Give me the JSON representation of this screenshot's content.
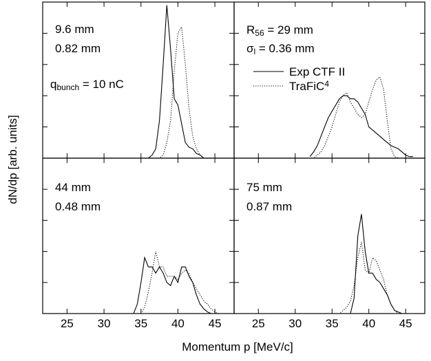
{
  "chart_data": {
    "type": "line",
    "x_label": "Momentum p [MeV/c]",
    "y_label": "dN/dp  [arb. units]",
    "x": [
      32,
      32.5,
      33,
      33.5,
      34,
      34.5,
      35,
      35.5,
      36,
      36.5,
      37,
      37.5,
      38,
      38.5,
      39,
      39.5,
      40,
      40.5,
      41,
      41.5,
      42,
      42.5,
      43,
      43.5,
      44,
      44.5,
      45,
      45.5,
      46
    ],
    "xlim": [
      21.7,
      47.6
    ],
    "xticks": [
      25,
      30,
      35,
      40,
      45
    ],
    "ylim": [
      0,
      5
    ],
    "yticks": [
      1,
      2,
      3,
      4
    ],
    "series": [
      {
        "name": [
          {
            "text": "Exp CTF II"
          }
        ],
        "color": "#000000",
        "style": "solid"
      },
      {
        "name": [
          {
            "text": "TraFiC"
          },
          {
            "sup": "4"
          }
        ],
        "color": "#000000",
        "style": "dotted"
      }
    ],
    "legend_panel": 1,
    "panels": [
      {
        "annotations": [
          [
            {
              "text": "9.6 mm"
            }
          ],
          [
            {
              "text": "0.82 mm"
            }
          ],
          [
            {
              "text": "q"
            },
            {
              "sub": "bunch"
            },
            {
              "text": " = 10 nC"
            }
          ]
        ],
        "values": [
          [
            0,
            0,
            0,
            0,
            0,
            0,
            0,
            0,
            0,
            0.1,
            0.3,
            1.2,
            3.0,
            4.9,
            3.5,
            1.9,
            1.7,
            1.1,
            0.5,
            0.35,
            0.3,
            0.15,
            0.1,
            0,
            0,
            0,
            0,
            0,
            0
          ],
          [
            0,
            0,
            0,
            0,
            0,
            0,
            0,
            0,
            0,
            0,
            0,
            0,
            0.1,
            0.5,
            1.2,
            2.8,
            4.0,
            4.2,
            3.0,
            1.6,
            0.7,
            0.3,
            0.1,
            0,
            0,
            0,
            0,
            0,
            0
          ]
        ]
      },
      {
        "annotations": [
          [
            {
              "text": "R"
            },
            {
              "sub": "56"
            },
            {
              "text": " = 29 mm"
            }
          ],
          [
            {
              "text": "σ"
            },
            {
              "sub": "l"
            },
            {
              "text": " = 0.36 mm"
            }
          ]
        ],
        "values": [
          [
            0.05,
            0.2,
            0.4,
            0.7,
            1.0,
            1.3,
            1.5,
            1.7,
            1.9,
            2.0,
            2.0,
            1.9,
            1.9,
            1.8,
            1.6,
            1.4,
            1.0,
            0.9,
            0.8,
            0.7,
            0.6,
            0.5,
            0.4,
            0.35,
            0.3,
            0.2,
            0.1,
            0.05,
            0.05
          ],
          [
            0,
            0,
            0.1,
            0.2,
            0.4,
            0.7,
            1.0,
            1.4,
            1.8,
            2.0,
            2.1,
            1.8,
            1.6,
            1.4,
            1.3,
            1.4,
            1.8,
            2.2,
            2.5,
            2.6,
            2.2,
            1.2,
            0.3,
            0.05,
            0,
            0,
            0,
            0,
            0
          ]
        ]
      },
      {
        "annotations": [
          [
            {
              "text": "44 mm"
            }
          ],
          [
            {
              "text": "0.48 mm"
            }
          ]
        ],
        "values": [
          [
            0,
            0,
            0,
            0,
            0,
            0.3,
            1.0,
            1.8,
            1.5,
            1.5,
            1.3,
            1.5,
            1.3,
            1.0,
            0.9,
            1.2,
            1.0,
            1.5,
            1.5,
            1.2,
            1.0,
            0.6,
            0.3,
            0.15,
            0.05,
            0,
            0,
            0,
            0
          ],
          [
            0,
            0,
            0,
            0,
            0,
            0,
            0,
            0.2,
            0.7,
            1.3,
            2.0,
            1.5,
            1.5,
            1.2,
            1.2,
            1.2,
            1.1,
            1.3,
            1.4,
            1.3,
            1.0,
            0.8,
            0.6,
            0.4,
            0.3,
            0.15,
            0.05,
            0,
            0
          ]
        ]
      },
      {
        "annotations": [
          [
            {
              "text": "75 mm"
            }
          ],
          [
            {
              "text": "0.87 mm"
            }
          ]
        ],
        "values": [
          [
            0,
            0,
            0,
            0,
            0,
            0,
            0,
            0,
            0,
            0,
            0,
            0,
            0.5,
            2.5,
            3.2,
            2.0,
            1.3,
            1.3,
            1.1,
            1.0,
            0.8,
            0.6,
            0.3,
            0.1,
            0.05,
            0,
            0,
            0,
            0
          ],
          [
            0,
            0,
            0,
            0,
            0,
            0,
            0,
            0,
            0,
            0.1,
            0.2,
            0.4,
            0.9,
            1.8,
            2.3,
            1.4,
            1.3,
            1.8,
            1.7,
            1.4,
            1.1,
            0.6,
            0.3,
            0.1,
            0,
            0,
            0,
            0,
            0
          ]
        ]
      }
    ]
  }
}
